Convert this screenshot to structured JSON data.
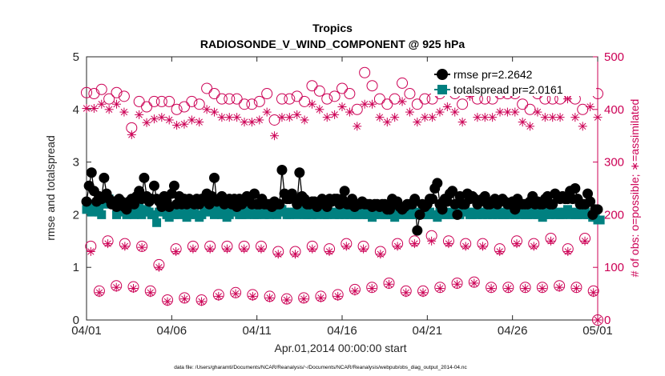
{
  "chart_data": {
    "type": "line",
    "title": "Tropics",
    "subtitle": "RADIOSONDE_V_WIND_COMPONENT @ 925 hPa",
    "xlabel": "Apr.01,2014 00:00:00 start",
    "ylabel": "rmse and totalspread",
    "ylabel_right": "# of obs: o=possible; ∗=assimilated",
    "footer": "data file: /Users/gharamti/Documents/NCAR/Reanalysis/~/Documents/NCAR/Reanalysis/webpub/obs_diag_output_2014-04.nc",
    "xlim": [
      0,
      30
    ],
    "ylim": [
      0,
      5
    ],
    "ylim_right": [
      0,
      500
    ],
    "x_ticks": [
      0,
      5,
      10,
      15,
      20,
      25,
      30
    ],
    "x_tick_labels": [
      "04/01",
      "04/06",
      "04/11",
      "04/16",
      "04/21",
      "04/26",
      "05/01"
    ],
    "y_ticks": [
      0,
      1,
      2,
      3,
      4,
      5
    ],
    "y_tick_labels": [
      "0",
      "1",
      "2",
      "3",
      "4",
      "5"
    ],
    "y_ticks_right": [
      0,
      100,
      200,
      300,
      400,
      500
    ],
    "y_tick_labels_right": [
      "0",
      "100",
      "200",
      "300",
      "400",
      "500"
    ],
    "legend_position": "top-right",
    "colors": {
      "rmse": "#000000",
      "totalspread": "#008080",
      "obs": "#cc0055",
      "axis": "#262626"
    },
    "series": [
      {
        "name": "rmse pr=2.2642",
        "axis": "left",
        "values": [
          2.25,
          2.55,
          2.8,
          2.45,
          2.25,
          2.35,
          2.3,
          2.7,
          2.4,
          2.3,
          2.2,
          2.25,
          2.15,
          2.3,
          2.25,
          2.15,
          2.1,
          2.25,
          2.3,
          2.2,
          2.35,
          2.45,
          2.3,
          2.7,
          2.35,
          2.25,
          2.3,
          2.55,
          2.3,
          2.25,
          2.15,
          2.35,
          2.25,
          2.15,
          2.4,
          2.55,
          2.2,
          2.35,
          2.2,
          2.3,
          2.2,
          2.3,
          2.25,
          2.2,
          2.3,
          2.2,
          2.3,
          2.3,
          2.4,
          2.2,
          2.35,
          2.7,
          2.25,
          2.3,
          2.35,
          2.2,
          2.25,
          2.3,
          2.2,
          2.3,
          2.15,
          2.3,
          2.2,
          2.25,
          2.35,
          2.3,
          2.2,
          2.4,
          2.2,
          2.2,
          2.3,
          2.2,
          2.2,
          2.2,
          2.15,
          2.25,
          2.2,
          2.2,
          2.85,
          2.4,
          2.3,
          2.3,
          2.4,
          2.3,
          2.2,
          2.8,
          2.35,
          2.3,
          2.2,
          2.2,
          2.25,
          2.25,
          2.15,
          2.2,
          2.3,
          2.2,
          2.15,
          2.3,
          2.25,
          2.3,
          2.3,
          2.2,
          2.3,
          2.45,
          2.2,
          2.2,
          2.3,
          2.15,
          2.2,
          2.2,
          2.25,
          2.2,
          2.2,
          2.2,
          2.15,
          2.2,
          2.2,
          2.15,
          2.2,
          2.2,
          2.1,
          2.1,
          2.3,
          2.2,
          2.25,
          2.15,
          2.1,
          2.15,
          2.2,
          2.2,
          2.2,
          2.3,
          1.7,
          2.0,
          2.2,
          2.15,
          2.2,
          2.3,
          2.3,
          2.5,
          2.6,
          2.2,
          2.1,
          2.3,
          2.25,
          2.4,
          2.45,
          2.2,
          2.0,
          2.35,
          2.2,
          2.2,
          2.4,
          2.3,
          2.35,
          2.3,
          2.2,
          2.25,
          2.3,
          2.35,
          2.2,
          2.2,
          2.25,
          2.3,
          2.2,
          2.25,
          2.3,
          2.25,
          2.2,
          2.2,
          2.25,
          2.1,
          2.3,
          2.2,
          2.2,
          2.2,
          2.2,
          2.25,
          2.35,
          2.2,
          2.25,
          2.2,
          2.2,
          2.3,
          2.35,
          2.2,
          2.2,
          2.4,
          2.35,
          2.3,
          2.35,
          2.3,
          2.3,
          2.45,
          2.3,
          2.5,
          2.3,
          2.2,
          2.2,
          2.2,
          2.4,
          2.25,
          2.0,
          2.1,
          2.1
        ]
      },
      {
        "name": "totalspread pr=2.0161",
        "axis": "left",
        "values": [
          2.1,
          2.15,
          2.05,
          2.2,
          2.1,
          2.05,
          2.0,
          2.2,
          2.3,
          2.3,
          2.25,
          2.2,
          2.0,
          2.05,
          2.1,
          2.2,
          2.0,
          2.05,
          2.15,
          2.0,
          2.1,
          2.2,
          2.0,
          2.05,
          2.1,
          2.05,
          2.0,
          2.0,
          1.85,
          2.05,
          2.15,
          2.1,
          2.0,
          1.95,
          2.05,
          2.0,
          2.1,
          2.0,
          2.1,
          2.05,
          1.95,
          2.0,
          2.1,
          2.05,
          2.0,
          1.95,
          2.0,
          2.1,
          2.05,
          2.1,
          2.15,
          2.0,
          2.05,
          2.1,
          2.0,
          2.05,
          1.95,
          2.0,
          2.05,
          2.1,
          2.05,
          2.0,
          2.0,
          2.05,
          2.0,
          2.1,
          2.05,
          2.0,
          2.0,
          2.05,
          2.05,
          2.0,
          2.05,
          2.0,
          2.1,
          2.05,
          2.0,
          2.05,
          2.1,
          2.05,
          2.0,
          2.0,
          2.05,
          2.05,
          2.0,
          2.1,
          2.05,
          2.0,
          2.0,
          2.05,
          2.0,
          2.05,
          2.0,
          2.05,
          2.05,
          2.0,
          2.0,
          2.05,
          2.05,
          2.0,
          2.05,
          2.0,
          2.05,
          2.0,
          2.05,
          2.0,
          2.05,
          2.0,
          2.0,
          2.05,
          2.0,
          2.05,
          2.0,
          2.05,
          1.95,
          2.0,
          2.05,
          2.0,
          2.05,
          2.0,
          2.0,
          2.05,
          2.0,
          1.95,
          2.05,
          2.0,
          2.0,
          2.05,
          2.0,
          2.0,
          2.05,
          2.0,
          2.05,
          2.0,
          2.05,
          2.0,
          2.0,
          2.05,
          2.0,
          2.0,
          1.95,
          2.05,
          2.05,
          2.0,
          2.0,
          2.05,
          2.0,
          2.0,
          2.05,
          2.0,
          2.05,
          2.1,
          2.05,
          2.0,
          2.0,
          2.05,
          2.0,
          2.05,
          2.0,
          2.05,
          2.0,
          2.05,
          2.0,
          2.05,
          2.0,
          2.05,
          2.0,
          2.0,
          2.05,
          2.0,
          2.05,
          2.0,
          2.05,
          2.0,
          2.05,
          2.0,
          2.0,
          2.05,
          2.0,
          2.05,
          2.0,
          2.05,
          1.95,
          2.0,
          2.05,
          2.0,
          2.05,
          2.0,
          2.05,
          2.0,
          2.0,
          2.05,
          2.1,
          2.0,
          2.05,
          2.0,
          2.0,
          2.05,
          2.0,
          2.05,
          2.0,
          2.0,
          1.95,
          2.0,
          1.9,
          1.9
        ]
      },
      {
        "name": "obs possible",
        "axis": "right",
        "values": [
          432,
          432,
          430,
          430,
          428,
          433,
          438,
          445,
          440,
          420,
          432,
          445,
          432,
          425,
          425,
          425,
          407,
          385,
          365,
          387,
          425,
          415,
          410,
          398,
          405,
          400,
          410,
          415,
          420,
          405,
          415,
          405,
          412,
          415,
          418,
          420,
          400,
          415,
          415,
          405,
          410,
          400,
          415,
          410,
          405,
          410,
          412,
          420,
          440,
          445,
          450,
          430,
          415,
          420,
          420,
          415,
          410,
          420,
          405,
          412,
          420,
          405,
          415,
          410,
          400,
          395,
          410,
          415,
          395,
          415,
          420,
          430,
          430,
          425,
          360,
          380,
          395,
          405,
          420,
          435,
          445,
          420,
          400,
          410,
          425,
          430,
          400,
          415,
          420,
          450,
          445,
          420,
          425,
          435,
          415,
          470,
          420,
          445,
          440,
          425,
          430,
          440,
          440,
          435,
          440,
          430,
          420,
          410,
          400,
          400,
          410,
          470,
          440,
          430,
          445,
          440,
          430,
          420,
          400,
          405,
          410,
          430,
          440,
          420,
          435,
          440,
          450,
          460,
          440,
          430,
          425,
          420,
          410,
          415,
          420,
          420,
          430,
          400,
          420,
          410,
          415,
          430,
          430,
          420,
          440,
          450,
          440,
          430,
          430,
          420,
          410,
          420,
          440,
          460,
          440,
          430,
          420,
          415,
          410,
          420,
          410,
          410,
          420,
          450,
          440,
          430,
          440,
          420,
          430,
          410,
          420,
          430,
          420,
          430,
          410,
          420,
          420,
          400,
          410,
          420,
          430,
          410,
          440,
          420,
          430,
          440,
          420,
          430,
          430,
          420,
          410,
          440,
          475,
          440,
          430,
          420,
          420,
          430,
          400,
          420,
          430,
          440,
          425,
          430,
          430
        ]
      },
      {
        "name": "obs assimilated",
        "axis": "right",
        "values": [
          402,
          400,
          405,
          402,
          405,
          403,
          410,
          420,
          410,
          400,
          412,
          420,
          410,
          400,
          400,
          395,
          378,
          355,
          352,
          350,
          380,
          390,
          380,
          370,
          375,
          370,
          375,
          382,
          388,
          370,
          385,
          370,
          378,
          380,
          384,
          386,
          370,
          380,
          380,
          372,
          376,
          368,
          380,
          376,
          372,
          376,
          378,
          385,
          400,
          410,
          415,
          395,
          380,
          385,
          385,
          380,
          375,
          385,
          372,
          378,
          385,
          370,
          380,
          376,
          368,
          362,
          376,
          380,
          362,
          380,
          385,
          395,
          395,
          390,
          340,
          350,
          365,
          372,
          385,
          400,
          410,
          385,
          368,
          376,
          390,
          395,
          368,
          380,
          385,
          415,
          410,
          385,
          390,
          400,
          380,
          400,
          385,
          410,
          405,
          390,
          395,
          405,
          405,
          400,
          405,
          395,
          385,
          375,
          368,
          368,
          376,
          410,
          405,
          395,
          410,
          405,
          395,
          385,
          368,
          372,
          376,
          395,
          405,
          385,
          400,
          405,
          415,
          425,
          405,
          395,
          390,
          385,
          376,
          380,
          385,
          385,
          395,
          368,
          385,
          376,
          380,
          395,
          395,
          385,
          405,
          415,
          405,
          395,
          395,
          385,
          376,
          385,
          405,
          425,
          405,
          395,
          385,
          380,
          376,
          385,
          376,
          376,
          385,
          415,
          405,
          395,
          405,
          385,
          395,
          376,
          385,
          395,
          385,
          395,
          376,
          385,
          385,
          368,
          376,
          385,
          395,
          376,
          405,
          385,
          395,
          405,
          385,
          395,
          395,
          385,
          376,
          405,
          420,
          405,
          395,
          385,
          385,
          395,
          368,
          385,
          395,
          405,
          390,
          395,
          385
        ]
      }
    ],
    "obs_low_groups": [
      {
        "name": "obs possible (low group 1)",
        "axis": "right",
        "x": [
          0.25,
          1.25,
          2.25,
          3.25,
          4.25,
          5.25,
          6.25,
          7.25,
          8.25,
          9.25,
          10.25,
          11.25,
          12.25,
          13.25,
          14.25,
          15.25,
          16.25,
          17.25,
          18.25,
          19.25,
          20.25,
          21.25,
          22.25,
          23.25,
          24.25,
          25.25,
          26.25,
          27.25,
          28.25,
          29.25
        ],
        "values": [
          140,
          150,
          145,
          140,
          105,
          135,
          140,
          140,
          140,
          140,
          140,
          130,
          130,
          140,
          135,
          145,
          140,
          130,
          145,
          150,
          160,
          150,
          145,
          145,
          135,
          150,
          145,
          155,
          135,
          155
        ]
      },
      {
        "name": "obs assimilated (low group 1)",
        "axis": "right",
        "x": [
          0.25,
          1.25,
          2.25,
          3.25,
          4.25,
          5.25,
          6.25,
          7.25,
          8.25,
          9.25,
          10.25,
          11.25,
          12.25,
          13.25,
          14.25,
          15.25,
          16.25,
          17.25,
          18.25,
          19.25,
          20.25,
          21.25,
          22.25,
          23.25,
          24.25,
          25.25,
          26.25,
          27.25,
          28.25,
          29.25
        ],
        "values": [
          130,
          145,
          140,
          138,
          100,
          130,
          135,
          135,
          135,
          135,
          135,
          125,
          125,
          135,
          130,
          140,
          135,
          125,
          140,
          145,
          150,
          145,
          140,
          140,
          130,
          145,
          140,
          150,
          130,
          150
        ]
      },
      {
        "name": "obs possible (low group 2)",
        "axis": "right",
        "x": [
          0.75,
          1.75,
          2.75,
          3.75,
          4.75,
          5.75,
          6.75,
          7.75,
          8.75,
          9.75,
          10.75,
          11.75,
          12.75,
          13.75,
          14.75,
          15.75,
          16.75,
          17.75,
          18.75,
          19.75,
          20.75,
          21.75,
          22.75,
          23.75,
          24.75,
          25.75,
          26.75,
          27.75,
          28.75,
          29.75
        ],
        "values": [
          55,
          65,
          63,
          55,
          38,
          42,
          38,
          48,
          52,
          48,
          45,
          40,
          42,
          45,
          48,
          58,
          62,
          70,
          55,
          55,
          62,
          70,
          72,
          62,
          62,
          62,
          62,
          65,
          62,
          55
        ]
      },
      {
        "name": "obs assimilated (low group 2)",
        "axis": "right",
        "x": [
          0.75,
          1.75,
          2.75,
          3.75,
          4.75,
          5.75,
          6.75,
          7.75,
          8.75,
          9.75,
          10.75,
          11.75,
          12.75,
          13.75,
          14.75,
          15.75,
          16.75,
          17.75,
          18.75,
          19.75,
          20.75,
          21.75,
          22.75,
          23.75,
          24.75,
          25.75,
          26.75,
          27.75,
          28.75,
          29.75
        ],
        "values": [
          52,
          62,
          60,
          52,
          35,
          40,
          35,
          45,
          50,
          45,
          42,
          38,
          40,
          42,
          45,
          55,
          60,
          68,
          52,
          52,
          60,
          68,
          70,
          60,
          60,
          60,
          60,
          62,
          60,
          52
        ]
      }
    ],
    "annotation_last_point": {
      "name": "obs at 05/01",
      "axis": "right",
      "x": 30,
      "values": [
        0
      ]
    }
  }
}
